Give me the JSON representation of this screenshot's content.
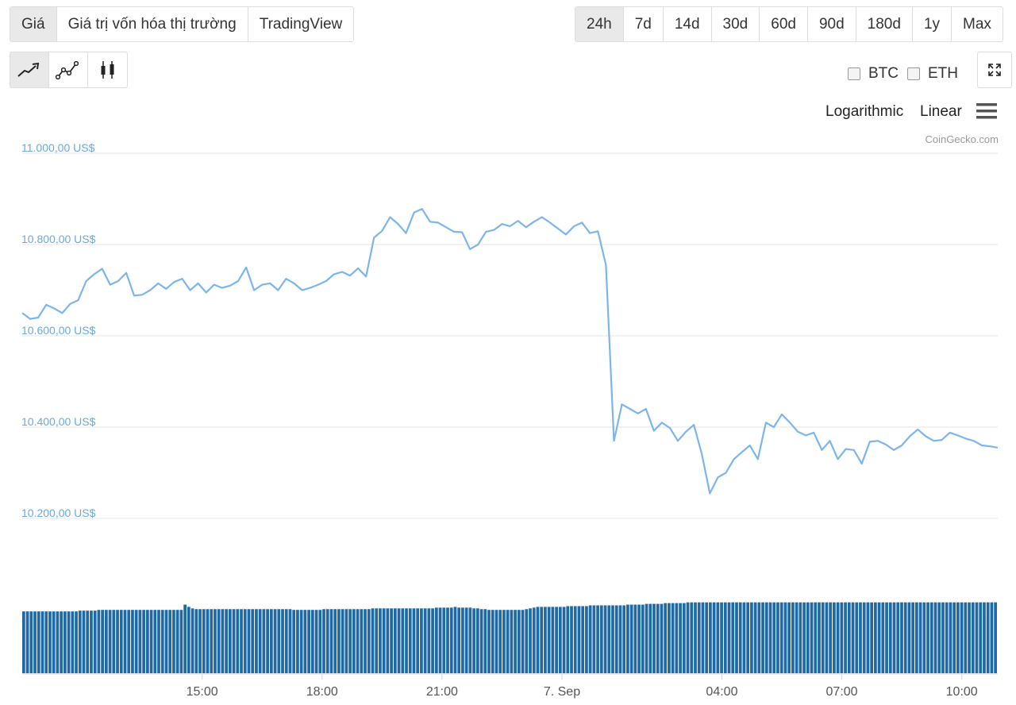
{
  "tabs": [
    "Giá",
    "Giá trị vốn hóa thị trường",
    "TradingView"
  ],
  "active_tab": 0,
  "ranges": [
    "24h",
    "7d",
    "14d",
    "30d",
    "60d",
    "90d",
    "180d",
    "1y",
    "Max"
  ],
  "active_range": 0,
  "chart_types": [
    "line-chart-icon",
    "line-markers-icon",
    "candlestick-icon"
  ],
  "compare": [
    {
      "label": "BTC",
      "checked": false
    },
    {
      "label": "ETH",
      "checked": false
    }
  ],
  "scale_options": {
    "log": "Logarithmic",
    "linear": "Linear"
  },
  "credit": "CoinGecko.com",
  "colors": {
    "line": "#7cb5ec",
    "volume": "#1f6aa5",
    "axis_text": "#6aa9dc"
  },
  "chart_data": {
    "type": "line",
    "y_ticks": [
      {
        "value": 11000,
        "label": "11.000,00 US$"
      },
      {
        "value": 10800,
        "label": "10.800,00 US$"
      },
      {
        "value": 10600,
        "label": "10.600,00 US$"
      },
      {
        "value": 10400,
        "label": "10.400,00 US$"
      },
      {
        "value": 10200,
        "label": "10.200,00 US$"
      }
    ],
    "ylim": [
      10200,
      11000
    ],
    "x_ticks": [
      {
        "t": 2.5,
        "label": "15:00"
      },
      {
        "t": 5.5,
        "label": "18:00"
      },
      {
        "t": 8.5,
        "label": "21:00"
      },
      {
        "t": 11.5,
        "label": "7. Sep"
      },
      {
        "t": 15.5,
        "label": "04:00"
      },
      {
        "t": 18.5,
        "label": "07:00"
      },
      {
        "t": 21.5,
        "label": "10:00"
      }
    ],
    "xlim": [
      -2.0,
      22.4
    ],
    "series": [
      {
        "points": [
          [
            -2.0,
            10650
          ],
          [
            -1.8,
            10637
          ],
          [
            -1.6,
            10640
          ],
          [
            -1.4,
            10668
          ],
          [
            -1.2,
            10660
          ],
          [
            -1.0,
            10650
          ],
          [
            -0.8,
            10670
          ],
          [
            -0.6,
            10678
          ],
          [
            -0.4,
            10720
          ],
          [
            -0.2,
            10735
          ],
          [
            0.0,
            10747
          ],
          [
            0.2,
            10712
          ],
          [
            0.4,
            10720
          ],
          [
            0.6,
            10738
          ],
          [
            0.8,
            10688
          ],
          [
            1.0,
            10690
          ],
          [
            1.2,
            10700
          ],
          [
            1.4,
            10715
          ],
          [
            1.6,
            10703
          ],
          [
            1.8,
            10718
          ],
          [
            2.0,
            10725
          ],
          [
            2.2,
            10700
          ],
          [
            2.4,
            10715
          ],
          [
            2.6,
            10695
          ],
          [
            2.8,
            10712
          ],
          [
            3.0,
            10705
          ],
          [
            3.2,
            10710
          ],
          [
            3.4,
            10720
          ],
          [
            3.6,
            10750
          ],
          [
            3.8,
            10700
          ],
          [
            4.0,
            10712
          ],
          [
            4.2,
            10715
          ],
          [
            4.4,
            10700
          ],
          [
            4.6,
            10725
          ],
          [
            4.8,
            10715
          ],
          [
            5.0,
            10700
          ],
          [
            5.2,
            10705
          ],
          [
            5.4,
            10712
          ],
          [
            5.6,
            10720
          ],
          [
            5.8,
            10735
          ],
          [
            6.0,
            10740
          ],
          [
            6.2,
            10732
          ],
          [
            6.4,
            10748
          ],
          [
            6.6,
            10730
          ],
          [
            6.8,
            10815
          ],
          [
            7.0,
            10830
          ],
          [
            7.2,
            10860
          ],
          [
            7.4,
            10845
          ],
          [
            7.6,
            10825
          ],
          [
            7.8,
            10870
          ],
          [
            8.0,
            10878
          ],
          [
            8.2,
            10850
          ],
          [
            8.4,
            10848
          ],
          [
            8.6,
            10838
          ],
          [
            8.8,
            10828
          ],
          [
            9.0,
            10827
          ],
          [
            9.2,
            10790
          ],
          [
            9.4,
            10800
          ],
          [
            9.6,
            10828
          ],
          [
            9.8,
            10832
          ],
          [
            10.0,
            10845
          ],
          [
            10.2,
            10840
          ],
          [
            10.4,
            10852
          ],
          [
            10.6,
            10838
          ],
          [
            10.8,
            10850
          ],
          [
            11.0,
            10860
          ],
          [
            11.2,
            10848
          ],
          [
            11.4,
            10835
          ],
          [
            11.6,
            10822
          ],
          [
            11.8,
            10840
          ],
          [
            12.0,
            10848
          ],
          [
            12.2,
            10825
          ],
          [
            12.4,
            10829
          ],
          [
            12.6,
            10755
          ],
          [
            12.8,
            10370
          ],
          [
            13.0,
            10450
          ],
          [
            13.2,
            10440
          ],
          [
            13.4,
            10430
          ],
          [
            13.6,
            10440
          ],
          [
            13.8,
            10392
          ],
          [
            14.0,
            10410
          ],
          [
            14.2,
            10398
          ],
          [
            14.4,
            10370
          ],
          [
            14.6,
            10390
          ],
          [
            14.8,
            10405
          ],
          [
            15.0,
            10340
          ],
          [
            15.2,
            10255
          ],
          [
            15.4,
            10290
          ],
          [
            15.6,
            10300
          ],
          [
            15.8,
            10330
          ],
          [
            16.0,
            10345
          ],
          [
            16.2,
            10360
          ],
          [
            16.4,
            10330
          ],
          [
            16.6,
            10410
          ],
          [
            16.8,
            10400
          ],
          [
            17.0,
            10428
          ],
          [
            17.2,
            10410
          ],
          [
            17.4,
            10390
          ],
          [
            17.6,
            10382
          ],
          [
            17.8,
            10388
          ],
          [
            18.0,
            10350
          ],
          [
            18.2,
            10370
          ],
          [
            18.4,
            10330
          ],
          [
            18.6,
            10352
          ],
          [
            18.8,
            10350
          ],
          [
            19.0,
            10320
          ],
          [
            19.2,
            10368
          ],
          [
            19.4,
            10370
          ],
          [
            19.6,
            10362
          ],
          [
            19.8,
            10350
          ],
          [
            20.0,
            10360
          ],
          [
            20.2,
            10380
          ],
          [
            20.4,
            10395
          ],
          [
            20.6,
            10380
          ],
          [
            20.8,
            10370
          ],
          [
            21.0,
            10372
          ],
          [
            21.2,
            10388
          ],
          [
            21.4,
            10382
          ],
          [
            21.6,
            10375
          ],
          [
            21.8,
            10370
          ],
          [
            22.0,
            10360
          ],
          [
            22.2,
            10358
          ],
          [
            22.4,
            10355
          ]
        ]
      }
    ],
    "volume_relative": [
      0.82,
      0.82,
      0.82,
      0.82,
      0.82,
      0.82,
      0.82,
      0.82,
      0.82,
      0.82,
      0.82,
      0.82,
      0.82,
      0.82,
      0.82,
      0.83,
      0.83,
      0.83,
      0.83,
      0.83,
      0.84,
      0.84,
      0.84,
      0.84,
      0.84,
      0.84,
      0.84,
      0.84,
      0.84,
      0.84,
      0.84,
      0.84,
      0.84,
      0.84,
      0.84,
      0.84,
      0.84,
      0.84,
      0.84,
      0.84,
      0.84,
      0.84,
      0.84,
      0.91,
      0.88,
      0.86,
      0.85,
      0.85,
      0.85,
      0.85,
      0.85,
      0.85,
      0.85,
      0.85,
      0.85,
      0.85,
      0.85,
      0.85,
      0.85,
      0.85,
      0.85,
      0.85,
      0.85,
      0.85,
      0.85,
      0.85,
      0.85,
      0.85,
      0.85,
      0.85,
      0.85,
      0.85,
      0.84,
      0.84,
      0.84,
      0.84,
      0.84,
      0.84,
      0.84,
      0.84,
      0.85,
      0.85,
      0.85,
      0.85,
      0.85,
      0.85,
      0.85,
      0.85,
      0.85,
      0.85,
      0.85,
      0.85,
      0.85,
      0.86,
      0.86,
      0.86,
      0.86,
      0.86,
      0.86,
      0.86,
      0.86,
      0.86,
      0.86,
      0.86,
      0.86,
      0.86,
      0.86,
      0.86,
      0.86,
      0.86,
      0.87,
      0.87,
      0.87,
      0.87,
      0.87,
      0.88,
      0.87,
      0.87,
      0.87,
      0.87,
      0.86,
      0.86,
      0.85,
      0.85,
      0.84,
      0.84,
      0.84,
      0.84,
      0.84,
      0.84,
      0.84,
      0.84,
      0.84,
      0.84,
      0.85,
      0.86,
      0.87,
      0.88,
      0.88,
      0.88,
      0.88,
      0.88,
      0.88,
      0.88,
      0.88,
      0.89,
      0.89,
      0.89,
      0.89,
      0.89,
      0.89,
      0.9,
      0.9,
      0.9,
      0.9,
      0.9,
      0.9,
      0.9,
      0.9,
      0.9,
      0.9,
      0.91,
      0.91,
      0.91,
      0.91,
      0.91,
      0.92,
      0.92,
      0.92,
      0.92,
      0.92,
      0.93,
      0.93,
      0.93,
      0.93,
      0.93,
      0.93,
      0.94,
      0.94,
      0.94,
      0.94,
      0.94,
      0.94,
      0.94,
      0.94,
      0.94,
      0.94,
      0.94,
      0.94,
      0.94,
      0.94,
      0.94,
      0.94,
      0.94,
      0.94,
      0.94,
      0.94,
      0.94,
      0.94,
      0.94,
      0.94,
      0.94,
      0.94,
      0.94,
      0.94,
      0.94,
      0.94,
      0.94,
      0.94,
      0.94,
      0.94,
      0.94,
      0.94,
      0.94,
      0.94,
      0.94,
      0.94,
      0.94,
      0.94,
      0.94,
      0.94,
      0.94,
      0.94,
      0.94,
      0.94,
      0.94,
      0.94,
      0.94,
      0.94,
      0.94,
      0.94,
      0.94,
      0.94,
      0.94,
      0.94,
      0.94,
      0.94,
      0.94,
      0.94,
      0.94,
      0.94,
      0.94,
      0.94,
      0.94,
      0.94,
      0.94,
      0.94,
      0.94,
      0.94,
      0.94,
      0.94,
      0.94,
      0.94,
      0.94,
      0.94,
      0.94,
      0.94,
      0.94,
      0.94,
      0.94
    ]
  }
}
